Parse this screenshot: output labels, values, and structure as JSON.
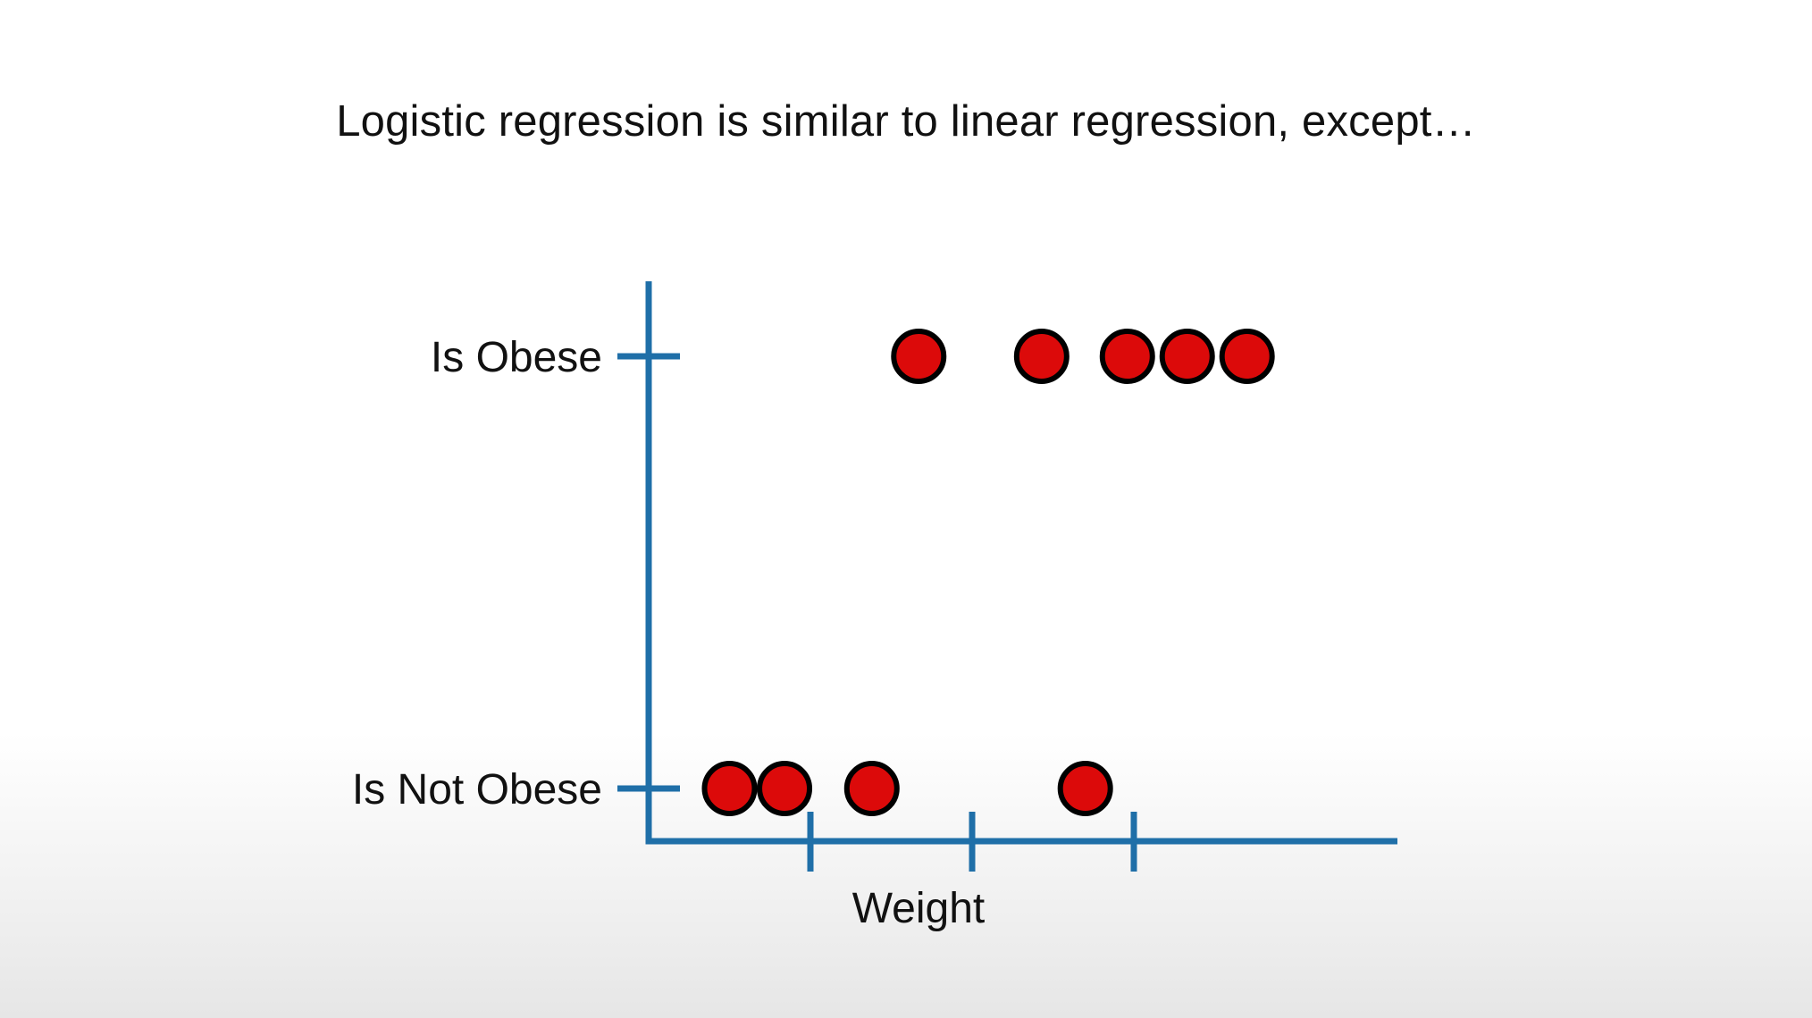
{
  "title": "Logistic regression is similar to linear regression, except…",
  "colors": {
    "axis": "#1f6fa8",
    "point_fill": "#dc0a0a",
    "point_stroke": "#000000",
    "text": "#111111"
  },
  "chart_data": {
    "type": "scatter",
    "title": "",
    "xlabel": "Weight",
    "ylabel": "",
    "x_ticks": [
      1,
      2,
      3
    ],
    "xlim": [
      0,
      4.6
    ],
    "y_categories": [
      "Is Not Obese",
      "Is Obese"
    ],
    "grid": false,
    "legend": "none",
    "series": [
      {
        "points": [
          {
            "x": 0.5,
            "y": "Is Not Obese"
          },
          {
            "x": 0.84,
            "y": "Is Not Obese"
          },
          {
            "x": 1.38,
            "y": "Is Not Obese"
          },
          {
            "x": 2.7,
            "y": "Is Not Obese"
          },
          {
            "x": 1.67,
            "y": "Is Obese"
          },
          {
            "x": 2.43,
            "y": "Is Obese"
          },
          {
            "x": 2.96,
            "y": "Is Obese"
          },
          {
            "x": 3.33,
            "y": "Is Obese"
          },
          {
            "x": 3.7,
            "y": "Is Obese"
          }
        ]
      }
    ]
  }
}
